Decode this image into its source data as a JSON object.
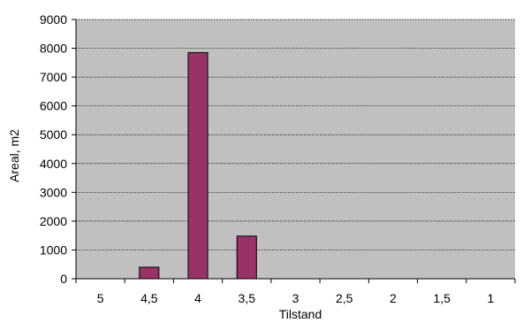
{
  "colors": {
    "plot_background": "#c0c0c0",
    "bar_fill": "#993366",
    "bar_stroke": "#000000",
    "gridline": "#000000",
    "axis": "#000000"
  },
  "chart_data": {
    "type": "bar",
    "categories": [
      "5",
      "4,5",
      "4",
      "3,5",
      "3",
      "2,5",
      "2",
      "1,5",
      "1"
    ],
    "values": [
      0,
      400,
      7850,
      1480,
      0,
      0,
      0,
      0,
      0
    ],
    "title": "",
    "xlabel": "Tilstand",
    "ylabel": "Areal, m2",
    "ylim": [
      0,
      9000
    ],
    "yticks": [
      0,
      1000,
      2000,
      3000,
      4000,
      5000,
      6000,
      7000,
      8000,
      9000
    ],
    "grid": true,
    "legend": "none"
  }
}
